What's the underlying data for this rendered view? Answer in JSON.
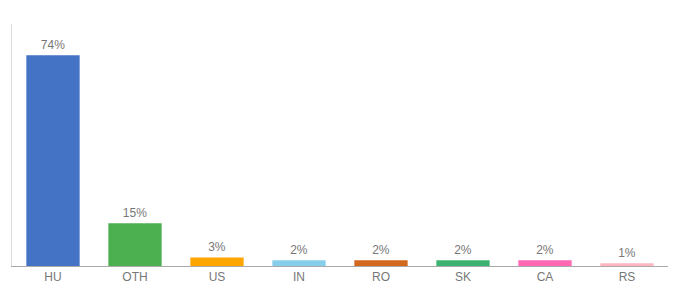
{
  "chart_data": {
    "type": "bar",
    "categories": [
      "HU",
      "OTH",
      "US",
      "IN",
      "RO",
      "SK",
      "CA",
      "RS"
    ],
    "values": [
      74,
      15,
      3,
      2,
      2,
      2,
      2,
      1
    ],
    "value_labels": [
      "74%",
      "15%",
      "3%",
      "2%",
      "2%",
      "2%",
      "2%",
      "1%"
    ],
    "colors": [
      "#4472C4",
      "#4CAF50",
      "#FFA500",
      "#87CEEB",
      "#D2691E",
      "#3CB371",
      "#FF69B4",
      "#FFB6C1"
    ],
    "ylim": [
      0,
      85
    ],
    "grid": false,
    "data_labels": true,
    "tick_labels": "x"
  }
}
